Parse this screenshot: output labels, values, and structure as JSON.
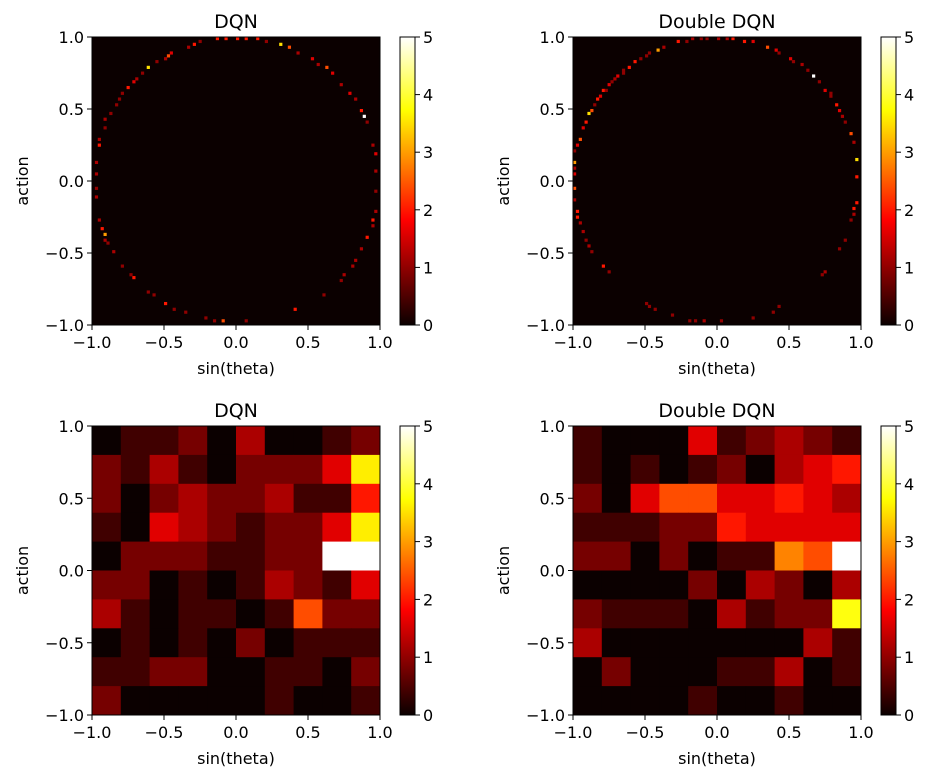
{
  "chart_data": [
    {
      "type": "heatmap",
      "title": "DQN",
      "xlabel": "sin(theta)",
      "ylabel": "action",
      "xlim": [
        -1.0,
        1.0
      ],
      "ylim": [
        -1.0,
        1.0
      ],
      "xticks": [
        "−1.0",
        "−0.5",
        "0.0",
        "0.5",
        "1.0"
      ],
      "yticks": [
        "−1.0",
        "−0.5",
        "0.0",
        "0.5",
        "1.0"
      ],
      "colormap": "hot",
      "clim": [
        0,
        5
      ],
      "colorbar_ticks": [
        "0",
        "1",
        "2",
        "3",
        "4",
        "5"
      ],
      "bins": 100,
      "points_format": [
        "x",
        "y",
        "value"
      ],
      "points": [
        [
          -0.137,
          0.982,
          2
        ],
        [
          -0.064,
          0.982,
          2
        ],
        [
          0.005,
          0.982,
          2
        ],
        [
          0.073,
          0.982,
          2
        ],
        [
          0.142,
          0.982,
          2
        ],
        [
          0.203,
          0.973,
          1
        ],
        [
          0.301,
          0.945,
          3.5
        ],
        [
          0.37,
          0.925,
          2.4
        ],
        [
          0.438,
          0.886,
          1.2
        ],
        [
          0.525,
          0.845,
          1.6
        ],
        [
          0.575,
          0.806,
          1.2
        ],
        [
          0.621,
          0.783,
          2.4
        ],
        [
          0.662,
          0.744,
          1.6
        ],
        [
          0.735,
          0.669,
          1.2
        ],
        [
          0.781,
          0.607,
          1.6
        ],
        [
          0.826,
          0.566,
          1.2
        ],
        [
          0.861,
          0.498,
          2
        ],
        [
          0.884,
          0.445,
          5
        ],
        [
          0.902,
          0.402,
          1
        ],
        [
          0.959,
          0.247,
          1.2
        ],
        [
          0.975,
          0.196,
          1.6
        ],
        [
          0.977,
          0.075,
          1.2
        ],
        [
          0.977,
          -0.073,
          1
        ],
        [
          0.968,
          -0.21,
          1.2
        ],
        [
          0.957,
          -0.267,
          2
        ],
        [
          0.941,
          -0.301,
          1.2
        ],
        [
          0.902,
          -0.393,
          2
        ],
        [
          0.872,
          -0.473,
          1.2
        ],
        [
          0.826,
          -0.553,
          1.2
        ],
        [
          0.804,
          -0.598,
          1.2
        ],
        [
          0.758,
          -0.644,
          1.2
        ],
        [
          0.724,
          -0.689,
          1
        ],
        [
          0.603,
          -0.797,
          1
        ],
        [
          0.402,
          -0.895,
          2
        ],
        [
          0.062,
          -0.975,
          1
        ],
        [
          -0.096,
          -0.975,
          2.4
        ],
        [
          -0.155,
          -0.975,
          1
        ],
        [
          -0.217,
          -0.957,
          1
        ],
        [
          -0.356,
          -0.913,
          1
        ],
        [
          -0.438,
          -0.895,
          1
        ],
        [
          -0.484,
          -0.856,
          2
        ],
        [
          -0.578,
          -0.797,
          1
        ],
        [
          -0.616,
          -0.774,
          1
        ],
        [
          -0.719,
          -0.676,
          2
        ],
        [
          -0.737,
          -0.653,
          1
        ],
        [
          -0.797,
          -0.594,
          1
        ],
        [
          -0.856,
          -0.484,
          1.2
        ],
        [
          -0.881,
          -0.434,
          1
        ],
        [
          -0.9,
          -0.404,
          1.2
        ],
        [
          -0.918,
          -0.377,
          3
        ],
        [
          -0.936,
          -0.324,
          2
        ],
        [
          -0.959,
          -0.267,
          1.2
        ],
        [
          -0.973,
          -0.119,
          1.2
        ],
        [
          -0.975,
          -0.055,
          1
        ],
        [
          -0.973,
          0.041,
          1.2
        ],
        [
          -0.973,
          0.132,
          1.2
        ],
        [
          -0.959,
          0.247,
          2
        ],
        [
          -0.943,
          0.285,
          1.2
        ],
        [
          -0.918,
          0.377,
          1
        ],
        [
          -0.9,
          0.434,
          1.2
        ],
        [
          -0.877,
          0.463,
          1
        ],
        [
          -0.84,
          0.525,
          1
        ],
        [
          -0.817,
          0.566,
          1
        ],
        [
          -0.795,
          0.605,
          1
        ],
        [
          -0.749,
          0.646,
          2
        ],
        [
          -0.715,
          0.687,
          1.6
        ],
        [
          -0.692,
          0.71,
          1.2
        ],
        [
          -0.658,
          0.749,
          1
        ],
        [
          -0.616,
          0.783,
          3.5
        ],
        [
          -0.555,
          0.829,
          1
        ],
        [
          -0.498,
          0.858,
          1.2
        ],
        [
          -0.475,
          0.868,
          2.4
        ],
        [
          -0.452,
          0.897,
          1.6
        ],
        [
          -0.338,
          0.938,
          1.2
        ],
        [
          -0.292,
          0.95,
          2
        ],
        [
          -0.258,
          0.966,
          1
        ]
      ]
    },
    {
      "type": "heatmap",
      "title": "Double DQN",
      "xlabel": "sin(theta)",
      "ylabel": "action",
      "xlim": [
        -1.0,
        1.0
      ],
      "ylim": [
        -1.0,
        1.0
      ],
      "xticks": [
        "−1.0",
        "−0.5",
        "0.0",
        "0.5",
        "1.0"
      ],
      "yticks": [
        "−1.0",
        "−0.5",
        "0.0",
        "0.5",
        "1.0"
      ],
      "colormap": "hot",
      "clim": [
        0,
        5
      ],
      "colorbar_ticks": [
        "0",
        "1",
        "2",
        "3",
        "4",
        "5"
      ],
      "bins": 100,
      "points_format": [
        "x",
        "y",
        "value"
      ],
      "points": [
        [
          -0.269,
          0.966,
          2
        ],
        [
          -0.201,
          0.977,
          1
        ],
        [
          -0.178,
          0.982,
          1.2
        ],
        [
          -0.105,
          0.982,
          1
        ],
        [
          -0.064,
          0.982,
          1
        ],
        [
          0.005,
          0.982,
          1.2
        ],
        [
          0.073,
          0.982,
          1.2
        ],
        [
          0.114,
          0.982,
          2
        ],
        [
          0.183,
          0.977,
          2
        ],
        [
          0.244,
          0.966,
          1.6
        ],
        [
          0.358,
          0.925,
          2.4
        ],
        [
          0.416,
          0.904,
          1.6
        ],
        [
          0.438,
          0.886,
          1
        ],
        [
          0.514,
          0.845,
          1.6
        ],
        [
          0.534,
          0.822,
          1
        ],
        [
          0.587,
          0.806,
          1.2
        ],
        [
          0.635,
          0.765,
          1
        ],
        [
          0.676,
          0.726,
          5
        ],
        [
          0.717,
          0.685,
          1
        ],
        [
          0.753,
          0.635,
          1.6
        ],
        [
          0.781,
          0.6,
          1
        ],
        [
          0.799,
          0.584,
          1
        ],
        [
          0.833,
          0.532,
          2
        ],
        [
          0.854,
          0.486,
          1.6
        ],
        [
          0.877,
          0.452,
          1.2
        ],
        [
          0.895,
          0.406,
          1
        ],
        [
          0.936,
          0.324,
          2.4
        ],
        [
          0.954,
          0.269,
          1.2
        ],
        [
          0.977,
          0.151,
          3.5
        ],
        [
          0.975,
          0.025,
          2
        ],
        [
          0.977,
          -0.16,
          2
        ],
        [
          0.959,
          -0.194,
          2
        ],
        [
          0.954,
          -0.237,
          1.2
        ],
        [
          0.936,
          -0.274,
          1
        ],
        [
          0.895,
          -0.416,
          1
        ],
        [
          0.856,
          -0.475,
          1
        ],
        [
          0.747,
          -0.639,
          1.2
        ],
        [
          0.735,
          -0.655,
          1
        ],
        [
          0.434,
          -0.877,
          1
        ],
        [
          0.393,
          -0.913,
          1
        ],
        [
          0.256,
          -0.957,
          1
        ],
        [
          0.037,
          -0.975,
          1
        ],
        [
          -0.091,
          -0.975,
          1.2
        ],
        [
          -0.144,
          -0.975,
          1
        ],
        [
          -0.183,
          -0.975,
          1
        ],
        [
          -0.306,
          -0.936,
          1
        ],
        [
          -0.425,
          -0.895,
          1
        ],
        [
          -0.463,
          -0.877,
          1
        ],
        [
          -0.486,
          -0.854,
          1
        ],
        [
          -0.744,
          -0.635,
          1
        ],
        [
          -0.79,
          -0.594,
          2
        ],
        [
          -0.863,
          -0.495,
          1
        ],
        [
          -0.886,
          -0.445,
          1.2
        ],
        [
          -0.904,
          -0.402,
          1
        ],
        [
          -0.922,
          -0.347,
          1.2
        ],
        [
          -0.945,
          -0.29,
          1.2
        ],
        [
          -0.963,
          -0.256,
          2
        ],
        [
          -0.963,
          -0.205,
          2
        ],
        [
          -0.982,
          -0.13,
          1.2
        ],
        [
          -0.982,
          -0.046,
          2.4
        ],
        [
          -0.982,
          0.041,
          1.6
        ],
        [
          -0.982,
          0.087,
          1.2
        ],
        [
          -0.982,
          0.126,
          3
        ],
        [
          -0.982,
          0.201,
          1
        ],
        [
          -0.963,
          0.247,
          1.6
        ],
        [
          -0.945,
          0.285,
          2.4
        ],
        [
          -0.922,
          0.365,
          1.6
        ],
        [
          -0.904,
          0.404,
          2
        ],
        [
          -0.886,
          0.463,
          3.5
        ],
        [
          -0.863,
          0.493,
          2.4
        ],
        [
          -0.845,
          0.521,
          1
        ],
        [
          -0.822,
          0.562,
          2
        ],
        [
          -0.804,
          0.589,
          1.6
        ],
        [
          -0.783,
          0.628,
          2
        ],
        [
          -0.765,
          0.639,
          1
        ],
        [
          -0.742,
          0.667,
          1.6
        ],
        [
          -0.721,
          0.685,
          1
        ],
        [
          -0.703,
          0.708,
          1.2
        ],
        [
          -0.68,
          0.726,
          1.6
        ],
        [
          -0.658,
          0.749,
          1
        ],
        [
          -0.642,
          0.767,
          1
        ],
        [
          -0.603,
          0.799,
          2
        ],
        [
          -0.566,
          0.826,
          2
        ],
        [
          -0.521,
          0.845,
          1
        ],
        [
          -0.486,
          0.863,
          1
        ],
        [
          -0.463,
          0.886,
          1
        ],
        [
          -0.413,
          0.904,
          3
        ],
        [
          -0.361,
          0.925,
          1.2
        ]
      ]
    },
    {
      "type": "heatmap",
      "title": "DQN",
      "xlabel": "sin(theta)",
      "ylabel": "action",
      "xlim": [
        -1.0,
        1.0
      ],
      "ylim": [
        -1.0,
        1.0
      ],
      "xticks": [
        "−1.0",
        "−0.5",
        "0.0",
        "0.5",
        "1.0"
      ],
      "yticks": [
        "−1.0",
        "−0.5",
        "0.0",
        "0.5",
        "1.0"
      ],
      "colormap": "hot",
      "clim": [
        0,
        5
      ],
      "colorbar_ticks": [
        "0",
        "1",
        "2",
        "3",
        "4",
        "5"
      ],
      "bins": 10,
      "grid_rows_top_to_bottom": [
        [
          0,
          0.4,
          0.4,
          0.8,
          0,
          1.2,
          0,
          0,
          0.4,
          0.8
        ],
        [
          0.8,
          0.4,
          1.2,
          0.4,
          0,
          0.8,
          0.8,
          0.8,
          1.6,
          3.6
        ],
        [
          0.8,
          0,
          0.8,
          1.2,
          0.8,
          0.8,
          1.2,
          0.4,
          0.4,
          2.0
        ],
        [
          0.4,
          0,
          1.6,
          1.2,
          0.8,
          0.4,
          0.8,
          0.8,
          1.6,
          3.6
        ],
        [
          0,
          0.8,
          0.8,
          0.8,
          0.4,
          0.4,
          0.8,
          0.8,
          5,
          5
        ],
        [
          0.8,
          0.8,
          0,
          0.4,
          0,
          0.4,
          1.2,
          0.8,
          0.4,
          1.6
        ],
        [
          1.2,
          0.4,
          0,
          0.4,
          0.4,
          0,
          0.4,
          2.4,
          0.8,
          0.8
        ],
        [
          0,
          0.4,
          0,
          0.4,
          0,
          0.8,
          0,
          0.4,
          0.4,
          0.4
        ],
        [
          0.4,
          0.4,
          0.8,
          0.8,
          0,
          0,
          0.4,
          0.4,
          0,
          0.8
        ],
        [
          0.8,
          0,
          0,
          0,
          0,
          0,
          0.4,
          0,
          0,
          0.4
        ]
      ]
    },
    {
      "type": "heatmap",
      "title": "Double DQN",
      "xlabel": "sin(theta)",
      "ylabel": "action",
      "xlim": [
        -1.0,
        1.0
      ],
      "ylim": [
        -1.0,
        1.0
      ],
      "xticks": [
        "−1.0",
        "−0.5",
        "0.0",
        "0.5",
        "1.0"
      ],
      "yticks": [
        "−1.0",
        "−0.5",
        "0.0",
        "0.5",
        "1.0"
      ],
      "colormap": "hot",
      "clim": [
        0,
        5
      ],
      "colorbar_ticks": [
        "0",
        "1",
        "2",
        "3",
        "4",
        "5"
      ],
      "bins": 10,
      "grid_rows_top_to_bottom": [
        [
          0.4,
          0,
          0,
          0,
          1.6,
          0.4,
          0.8,
          1.2,
          0.8,
          0.4
        ],
        [
          0.4,
          0,
          0.4,
          0,
          0.4,
          0.8,
          0,
          1.2,
          1.6,
          2.0
        ],
        [
          0.8,
          0,
          1.6,
          2.4,
          2.4,
          1.6,
          1.6,
          2.0,
          1.6,
          1.2
        ],
        [
          0.4,
          0.4,
          0.4,
          0.8,
          0.8,
          2.0,
          1.6,
          1.6,
          1.6,
          1.6
        ],
        [
          0.8,
          0.8,
          0,
          0.8,
          0,
          0.4,
          0.4,
          2.8,
          2.4,
          5
        ],
        [
          0,
          0,
          0,
          0,
          0.8,
          0,
          1.2,
          0.8,
          0,
          1.2
        ],
        [
          0.8,
          0.4,
          0.4,
          0.4,
          0,
          1.2,
          0.4,
          0.8,
          0.8,
          3.8
        ],
        [
          1.2,
          0,
          0,
          0,
          0,
          0,
          0,
          0,
          1.2,
          0.4
        ],
        [
          0,
          0.8,
          0,
          0,
          0,
          0.4,
          0.4,
          1.2,
          0,
          0.4
        ],
        [
          0,
          0,
          0,
          0,
          0.4,
          0,
          0,
          0.4,
          0,
          0
        ]
      ]
    }
  ]
}
